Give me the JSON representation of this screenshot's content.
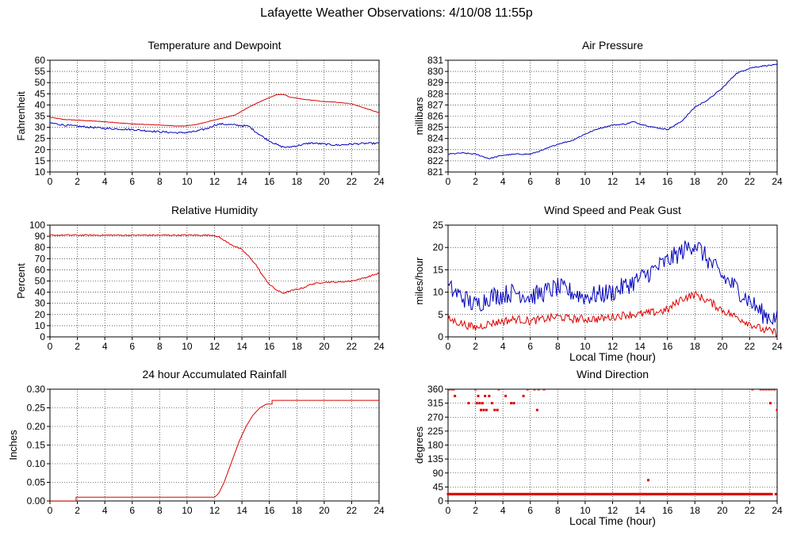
{
  "page": {
    "title": "Lafayette Weather Observations: 4/10/08 11:55p"
  },
  "colors": {
    "red": "#dd0000",
    "blue": "#0000bb",
    "grid": "#000000"
  },
  "chart_data": [
    {
      "id": "temp",
      "type": "line",
      "title": "Temperature and Dewpoint",
      "xlabel": "",
      "ylabel": "Fahrenheit",
      "xlim": [
        0,
        24
      ],
      "ylim": [
        10,
        60
      ],
      "xticks": [
        0,
        2,
        4,
        6,
        8,
        10,
        12,
        14,
        16,
        18,
        20,
        22,
        24
      ],
      "yticks": [
        10,
        15,
        20,
        25,
        30,
        35,
        40,
        45,
        50,
        55,
        60
      ],
      "grid": true,
      "series": [
        {
          "color": "#dd0000",
          "noise": 0.1,
          "points": [
            [
              0,
              34.5
            ],
            [
              1,
              33.5
            ],
            [
              2,
              33.2
            ],
            [
              4,
              32.5
            ],
            [
              6,
              31.5
            ],
            [
              8,
              31
            ],
            [
              9.5,
              30.5
            ],
            [
              10.5,
              31
            ],
            [
              11.5,
              32.5
            ],
            [
              12.5,
              34
            ],
            [
              13.5,
              35.5
            ],
            [
              14.5,
              39
            ],
            [
              15.5,
              42
            ],
            [
              16.5,
              44.5
            ],
            [
              17,
              44.8
            ],
            [
              17.5,
              43.5
            ],
            [
              18.5,
              42.5
            ],
            [
              20,
              41.5
            ],
            [
              21,
              41.2
            ],
            [
              22,
              40.5
            ],
            [
              23,
              38.5
            ],
            [
              24,
              36.5
            ]
          ]
        },
        {
          "color": "#0000bb",
          "noise": 0.4,
          "points": [
            [
              0,
              32
            ],
            [
              1,
              31
            ],
            [
              2,
              30.5
            ],
            [
              4,
              29.5
            ],
            [
              6,
              29
            ],
            [
              8,
              28
            ],
            [
              9.5,
              27.5
            ],
            [
              10.5,
              28
            ],
            [
              11.5,
              29.5
            ],
            [
              12,
              31
            ],
            [
              12.5,
              31.5
            ],
            [
              13.5,
              31
            ],
            [
              14.5,
              30.5
            ],
            [
              15,
              28
            ],
            [
              15.7,
              25
            ],
            [
              16.3,
              23
            ],
            [
              16.8,
              21.5
            ],
            [
              17.3,
              21
            ],
            [
              18.2,
              22
            ],
            [
              19,
              23
            ],
            [
              20,
              22.5
            ],
            [
              21,
              22
            ],
            [
              22,
              22.5
            ],
            [
              23,
              22.8
            ],
            [
              24,
              22.8
            ]
          ]
        }
      ]
    },
    {
      "id": "press",
      "type": "line",
      "title": "Air Pressure",
      "xlabel": "",
      "ylabel": "millibars",
      "xlim": [
        0,
        24
      ],
      "ylim": [
        821,
        831
      ],
      "xticks": [
        0,
        2,
        4,
        6,
        8,
        10,
        12,
        14,
        16,
        18,
        20,
        22,
        24
      ],
      "yticks": [
        821,
        822,
        823,
        824,
        825,
        826,
        827,
        828,
        829,
        830,
        831
      ],
      "grid": true,
      "series": [
        {
          "color": "#0000bb",
          "noise": 0.05,
          "points": [
            [
              0,
              822.6
            ],
            [
              1,
              822.7
            ],
            [
              2,
              822.6
            ],
            [
              3,
              822.2
            ],
            [
              4,
              822.5
            ],
            [
              5,
              822.6
            ],
            [
              6,
              822.6
            ],
            [
              7,
              823
            ],
            [
              8,
              823.5
            ],
            [
              9,
              823.8
            ],
            [
              10,
              824.4
            ],
            [
              11,
              824.9
            ],
            [
              12,
              825.2
            ],
            [
              13,
              825.3
            ],
            [
              13.5,
              825.5
            ],
            [
              14,
              825.3
            ],
            [
              15,
              825
            ],
            [
              16,
              824.8
            ],
            [
              17,
              825.5
            ],
            [
              18,
              826.8
            ],
            [
              19,
              827.5
            ],
            [
              20,
              828.5
            ],
            [
              21,
              829.8
            ],
            [
              22,
              830.3
            ],
            [
              23,
              830.5
            ],
            [
              24,
              830.6
            ]
          ]
        }
      ]
    },
    {
      "id": "rh",
      "type": "line",
      "title": "Relative Humidity",
      "xlabel": "",
      "ylabel": "Percent",
      "xlim": [
        0,
        24
      ],
      "ylim": [
        0,
        100
      ],
      "xticks": [
        0,
        2,
        4,
        6,
        8,
        10,
        12,
        14,
        16,
        18,
        20,
        22,
        24
      ],
      "yticks": [
        0,
        10,
        20,
        30,
        40,
        50,
        60,
        70,
        80,
        90,
        100
      ],
      "grid": true,
      "series": [
        {
          "color": "#dd0000",
          "noise": 0.6,
          "points": [
            [
              0,
              91
            ],
            [
              4,
              91
            ],
            [
              8,
              91
            ],
            [
              12,
              91
            ],
            [
              12.5,
              88
            ],
            [
              13,
              84
            ],
            [
              14,
              78
            ],
            [
              14.5,
              72
            ],
            [
              15,
              65
            ],
            [
              15.5,
              55
            ],
            [
              16,
              47
            ],
            [
              16.5,
              42
            ],
            [
              17,
              39
            ],
            [
              17.5,
              41
            ],
            [
              18.5,
              44
            ],
            [
              19,
              47
            ],
            [
              20,
              49
            ],
            [
              21,
              49
            ],
            [
              22,
              50
            ],
            [
              23,
              53
            ],
            [
              24,
              57
            ]
          ]
        }
      ]
    },
    {
      "id": "wind",
      "type": "line",
      "title": "Wind Speed and Peak Gust",
      "xlabel": "Local Time (hour)",
      "ylabel": "miles/hour",
      "xlim": [
        0,
        24
      ],
      "ylim": [
        0,
        25
      ],
      "xticks": [
        0,
        2,
        4,
        6,
        8,
        10,
        12,
        14,
        16,
        18,
        20,
        22,
        24
      ],
      "yticks": [
        0,
        5,
        10,
        15,
        20,
        25
      ],
      "grid": true,
      "series": [
        {
          "color": "#0000bb",
          "noise": 2.2,
          "points": [
            [
              0,
              11
            ],
            [
              1,
              9
            ],
            [
              2,
              7
            ],
            [
              3,
              9
            ],
            [
              4,
              9.5
            ],
            [
              5,
              10
            ],
            [
              6,
              9
            ],
            [
              7,
              10
            ],
            [
              8,
              11
            ],
            [
              9,
              10
            ],
            [
              10,
              9
            ],
            [
              11,
              9.5
            ],
            [
              12,
              10
            ],
            [
              13,
              11.5
            ],
            [
              14,
              13
            ],
            [
              15,
              15
            ],
            [
              16,
              17
            ],
            [
              17,
              19
            ],
            [
              18,
              21
            ],
            [
              19,
              17
            ],
            [
              20,
              13.5
            ],
            [
              21,
              11
            ],
            [
              22,
              8
            ],
            [
              23,
              5
            ],
            [
              24,
              4
            ]
          ]
        },
        {
          "color": "#dd0000",
          "noise": 0.9,
          "points": [
            [
              0,
              4
            ],
            [
              1,
              3
            ],
            [
              2,
              2
            ],
            [
              3,
              3
            ],
            [
              4,
              3.5
            ],
            [
              5,
              4
            ],
            [
              6,
              3.5
            ],
            [
              7,
              4
            ],
            [
              8,
              4.5
            ],
            [
              9,
              4
            ],
            [
              10,
              4
            ],
            [
              11,
              4
            ],
            [
              12,
              4.5
            ],
            [
              13,
              5
            ],
            [
              14,
              5
            ],
            [
              15,
              5.5
            ],
            [
              16,
              6
            ],
            [
              17,
              8.5
            ],
            [
              18,
              9.5
            ],
            [
              19,
              8
            ],
            [
              20,
              6
            ],
            [
              21,
              4.5
            ],
            [
              22,
              3
            ],
            [
              23,
              1.5
            ],
            [
              24,
              1
            ]
          ]
        }
      ]
    },
    {
      "id": "rain",
      "type": "line",
      "title": "24 hour Accumulated Rainfall",
      "xlabel": "",
      "ylabel": "Inches",
      "xlim": [
        0,
        24
      ],
      "ylim": [
        0,
        0.3
      ],
      "xticks": [
        0,
        2,
        4,
        6,
        8,
        10,
        12,
        14,
        16,
        18,
        20,
        22,
        24
      ],
      "yticks": [
        "0.00",
        "0.05",
        "0.10",
        "0.15",
        "0.20",
        "0.25",
        "0.30"
      ],
      "grid": true,
      "series": [
        {
          "color": "#dd0000",
          "noise": 0,
          "points": [
            [
              0,
              0
            ],
            [
              1.9,
              0
            ],
            [
              1.9,
              0.01
            ],
            [
              12,
              0.01
            ],
            [
              12.3,
              0.02
            ],
            [
              12.7,
              0.05
            ],
            [
              13,
              0.08
            ],
            [
              13.4,
              0.12
            ],
            [
              13.8,
              0.16
            ],
            [
              14.3,
              0.2
            ],
            [
              14.8,
              0.23
            ],
            [
              15.3,
              0.25
            ],
            [
              15.8,
              0.26
            ],
            [
              16.2,
              0.26
            ],
            [
              16.2,
              0.27
            ],
            [
              24,
              0.27
            ]
          ]
        }
      ]
    },
    {
      "id": "dir",
      "type": "scatter",
      "title": "Wind Direction",
      "xlabel": "Local Time (hour)",
      "ylabel": "degrees",
      "xlim": [
        0,
        24
      ],
      "ylim": [
        0,
        360
      ],
      "xticks": [
        0,
        2,
        4,
        6,
        8,
        10,
        12,
        14,
        16,
        18,
        20,
        22,
        24
      ],
      "yticks": [
        0,
        45,
        90,
        135,
        180,
        225,
        270,
        315,
        360
      ],
      "grid": true,
      "band": {
        "y": 22,
        "x_from": 0,
        "x_to": 23.6,
        "step": 0.08
      },
      "series": [
        {
          "color": "#dd0000",
          "points": [
            [
              0.1,
              360
            ],
            [
              0.3,
              360
            ],
            [
              0.5,
              338
            ],
            [
              0.4,
              360
            ],
            [
              1.5,
              315
            ],
            [
              2,
              360
            ],
            [
              2.1,
              315
            ],
            [
              2.2,
              338
            ],
            [
              2.3,
              315
            ],
            [
              2.4,
              293
            ],
            [
              2.6,
              293
            ],
            [
              2.7,
              338
            ],
            [
              2.8,
              293
            ],
            [
              2.5,
              315
            ],
            [
              3,
              338
            ],
            [
              3.2,
              315
            ],
            [
              3.4,
              293
            ],
            [
              3.6,
              293
            ],
            [
              3.7,
              360
            ],
            [
              4.2,
              338
            ],
            [
              4.6,
              315
            ],
            [
              4.8,
              315
            ],
            [
              5.5,
              338
            ],
            [
              5.8,
              360
            ],
            [
              6.3,
              360
            ],
            [
              6.5,
              293
            ],
            [
              6.6,
              360
            ],
            [
              7,
              360
            ],
            [
              14.6,
              67
            ],
            [
              22.2,
              360
            ],
            [
              22.8,
              360
            ],
            [
              23,
              360
            ],
            [
              23.2,
              360
            ],
            [
              23.4,
              360
            ],
            [
              23.6,
              360
            ],
            [
              23.8,
              360
            ],
            [
              23.5,
              315
            ],
            [
              24,
              293
            ],
            [
              23.9,
              22
            ]
          ]
        }
      ]
    }
  ]
}
